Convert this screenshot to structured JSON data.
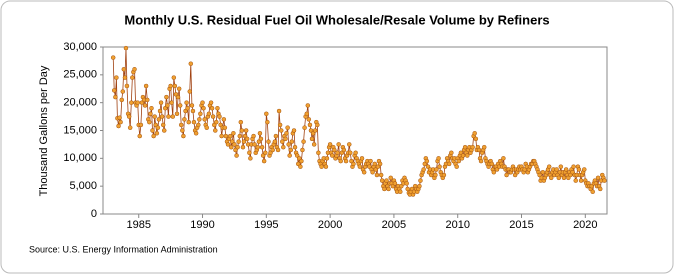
{
  "chart_data": {
    "type": "line",
    "title": "Monthly U.S. Residual Fuel Oil Wholesale/Resale Volume by Refiners",
    "y_label": "Thousand Gallons per Day",
    "source": "Source: U.S. Energy Information Administration",
    "color": "#f0a030",
    "xlim": [
      1982.2,
      2021.7
    ],
    "xticks": [
      1985,
      1990,
      1995,
      2000,
      2005,
      2010,
      2015,
      2020
    ],
    "ylim": [
      0,
      30000
    ],
    "yticks": [
      0,
      {
        "value": 5000,
        "label": "5,000"
      },
      {
        "value": 10000,
        "label": "10,000"
      },
      {
        "value": 15000,
        "label": "15,000"
      },
      {
        "value": 20000,
        "label": "20,000"
      },
      {
        "value": 25000,
        "label": "25,000"
      },
      {
        "value": 30000,
        "label": "30,000"
      }
    ],
    "x": [
      1983.0,
      1983.08,
      1983.17,
      1983.25,
      1983.33,
      1983.42,
      1983.5,
      1983.58,
      1983.67,
      1983.75,
      1983.83,
      1983.92,
      1984.0,
      1984.08,
      1984.17,
      1984.25,
      1984.33,
      1984.42,
      1984.5,
      1984.58,
      1984.67,
      1984.75,
      1984.83,
      1984.92,
      1985.0,
      1985.08,
      1985.17,
      1985.25,
      1985.33,
      1985.42,
      1985.5,
      1985.58,
      1985.67,
      1985.75,
      1985.83,
      1985.92,
      1986.0,
      1986.08,
      1986.17,
      1986.25,
      1986.33,
      1986.42,
      1986.5,
      1986.58,
      1986.67,
      1986.75,
      1986.83,
      1986.92,
      1987.0,
      1987.08,
      1987.17,
      1987.25,
      1987.33,
      1987.42,
      1987.5,
      1987.58,
      1987.67,
      1987.75,
      1987.83,
      1987.92,
      1988.0,
      1988.08,
      1988.17,
      1988.25,
      1988.33,
      1988.42,
      1988.5,
      1988.58,
      1988.67,
      1988.75,
      1988.83,
      1988.92,
      1989.0,
      1989.08,
      1989.17,
      1989.25,
      1989.33,
      1989.42,
      1989.5,
      1989.58,
      1989.67,
      1989.75,
      1989.83,
      1989.92,
      1990.0,
      1990.08,
      1990.17,
      1990.25,
      1990.33,
      1990.42,
      1990.5,
      1990.58,
      1990.67,
      1990.75,
      1990.83,
      1990.92,
      1991.0,
      1991.08,
      1991.17,
      1991.25,
      1991.33,
      1991.42,
      1991.5,
      1991.58,
      1991.67,
      1991.75,
      1991.83,
      1991.92,
      1992.0,
      1992.08,
      1992.17,
      1992.25,
      1992.33,
      1992.42,
      1992.5,
      1992.58,
      1992.67,
      1992.75,
      1992.83,
      1992.92,
      1993.0,
      1993.08,
      1993.17,
      1993.25,
      1993.33,
      1993.42,
      1993.5,
      1993.58,
      1993.67,
      1993.75,
      1993.83,
      1993.92,
      1994.0,
      1994.08,
      1994.17,
      1994.25,
      1994.33,
      1994.42,
      1994.5,
      1994.58,
      1994.67,
      1994.75,
      1994.83,
      1994.92,
      1995.0,
      1995.08,
      1995.17,
      1995.25,
      1995.33,
      1995.42,
      1995.5,
      1995.58,
      1995.67,
      1995.75,
      1995.83,
      1995.92,
      1996.0,
      1996.08,
      1996.17,
      1996.25,
      1996.33,
      1996.42,
      1996.5,
      1996.58,
      1996.67,
      1996.75,
      1996.83,
      1996.92,
      1997.0,
      1997.08,
      1997.17,
      1997.25,
      1997.33,
      1997.42,
      1997.5,
      1997.58,
      1997.67,
      1997.75,
      1997.83,
      1997.92,
      1998.0,
      1998.08,
      1998.17,
      1998.25,
      1998.33,
      1998.42,
      1998.5,
      1998.58,
      1998.67,
      1998.75,
      1998.83,
      1998.92,
      1999.0,
      1999.08,
      1999.17,
      1999.25,
      1999.33,
      1999.42,
      1999.5,
      1999.58,
      1999.67,
      1999.75,
      1999.83,
      1999.92,
      2000.0,
      2000.08,
      2000.17,
      2000.25,
      2000.33,
      2000.42,
      2000.5,
      2000.58,
      2000.67,
      2000.75,
      2000.83,
      2000.92,
      2001.0,
      2001.08,
      2001.17,
      2001.25,
      2001.33,
      2001.42,
      2001.5,
      2001.58,
      2001.67,
      2001.75,
      2001.83,
      2001.92,
      2002.0,
      2002.08,
      2002.17,
      2002.25,
      2002.33,
      2002.42,
      2002.5,
      2002.58,
      2002.67,
      2002.75,
      2002.83,
      2002.92,
      2003.0,
      2003.08,
      2003.17,
      2003.25,
      2003.33,
      2003.42,
      2003.5,
      2003.58,
      2003.67,
      2003.75,
      2003.83,
      2003.92,
      2004.0,
      2004.08,
      2004.17,
      2004.25,
      2004.33,
      2004.42,
      2004.5,
      2004.58,
      2004.67,
      2004.75,
      2004.83,
      2004.92,
      2005.0,
      2005.08,
      2005.17,
      2005.25,
      2005.33,
      2005.42,
      2005.5,
      2005.58,
      2005.67,
      2005.75,
      2005.83,
      2005.92,
      2006.0,
      2006.08,
      2006.17,
      2006.25,
      2006.33,
      2006.42,
      2006.5,
      2006.58,
      2006.67,
      2006.75,
      2006.83,
      2006.92,
      2007.0,
      2007.08,
      2007.17,
      2007.25,
      2007.33,
      2007.42,
      2007.5,
      2007.58,
      2007.67,
      2007.75,
      2007.83,
      2007.92,
      2008.0,
      2008.08,
      2008.17,
      2008.25,
      2008.33,
      2008.42,
      2008.5,
      2008.58,
      2008.67,
      2008.75,
      2008.83,
      2008.92,
      2009.0,
      2009.08,
      2009.17,
      2009.25,
      2009.33,
      2009.42,
      2009.5,
      2009.58,
      2009.67,
      2009.75,
      2009.83,
      2009.92,
      2010.0,
      2010.08,
      2010.17,
      2010.25,
      2010.33,
      2010.42,
      2010.5,
      2010.58,
      2010.67,
      2010.75,
      2010.83,
      2010.92,
      2011.0,
      2011.08,
      2011.17,
      2011.25,
      2011.33,
      2011.42,
      2011.5,
      2011.58,
      2011.67,
      2011.75,
      2011.83,
      2011.92,
      2012.0,
      2012.08,
      2012.17,
      2012.25,
      2012.33,
      2012.42,
      2012.5,
      2012.58,
      2012.67,
      2012.75,
      2012.83,
      2012.92,
      2013.0,
      2013.08,
      2013.17,
      2013.25,
      2013.33,
      2013.42,
      2013.5,
      2013.58,
      2013.67,
      2013.75,
      2013.83,
      2013.92,
      2014.0,
      2014.08,
      2014.17,
      2014.25,
      2014.33,
      2014.42,
      2014.5,
      2014.58,
      2014.67,
      2014.75,
      2014.83,
      2014.92,
      2015.0,
      2015.08,
      2015.17,
      2015.25,
      2015.33,
      2015.42,
      2015.5,
      2015.58,
      2015.67,
      2015.75,
      2015.83,
      2015.92,
      2016.0,
      2016.08,
      2016.17,
      2016.25,
      2016.33,
      2016.42,
      2016.5,
      2016.58,
      2016.67,
      2016.75,
      2016.83,
      2016.92,
      2017.0,
      2017.08,
      2017.17,
      2017.25,
      2017.33,
      2017.42,
      2017.5,
      2017.58,
      2017.67,
      2017.75,
      2017.83,
      2017.92,
      2018.0,
      2018.08,
      2018.17,
      2018.25,
      2018.33,
      2018.42,
      2018.5,
      2018.58,
      2018.67,
      2018.75,
      2018.83,
      2018.92,
      2019.0,
      2019.08,
      2019.17,
      2019.25,
      2019.33,
      2019.42,
      2019.5,
      2019.58,
      2019.67,
      2019.75,
      2019.83,
      2019.92,
      2020.0,
      2020.08,
      2020.17,
      2020.25,
      2020.33,
      2020.42,
      2020.5,
      2020.58,
      2020.67,
      2020.75,
      2020.83,
      2020.92,
      2021.0,
      2021.08,
      2021.17,
      2021.25,
      2021.33,
      2021.42,
      2021.5
    ],
    "values": [
      28100,
      22200,
      21000,
      24500,
      17200,
      15800,
      17300,
      16500,
      20500,
      22000,
      26000,
      24500,
      29800,
      23000,
      18000,
      17500,
      15500,
      20000,
      24500,
      25500,
      26000,
      20000,
      19500,
      20000,
      16000,
      14000,
      16000,
      20000,
      21000,
      20500,
      19500,
      23000,
      20500,
      17000,
      16500,
      18000,
      19000,
      15000,
      14000,
      17500,
      16000,
      14500,
      15500,
      17000,
      18500,
      20000,
      17500,
      16000,
      15000,
      19000,
      21000,
      19500,
      17500,
      22500,
      23000,
      20000,
      17500,
      24500,
      23000,
      21500,
      18000,
      21000,
      22500,
      19500,
      16000,
      15000,
      14000,
      17000,
      18500,
      20000,
      19000,
      16500,
      22000,
      27000,
      19500,
      18500,
      16500,
      15000,
      14500,
      15500,
      16000,
      17000,
      18000,
      19500,
      20000,
      19000,
      17000,
      16000,
      15500,
      17500,
      18000,
      19500,
      20000,
      19000,
      17500,
      16000,
      15000,
      16500,
      19000,
      18000,
      17500,
      16000,
      14000,
      15500,
      17000,
      15500,
      14000,
      13000,
      12500,
      13500,
      14000,
      12000,
      13000,
      14500,
      12500,
      11500,
      10500,
      12000,
      13000,
      14000,
      16500,
      15000,
      12000,
      13000,
      14000,
      15000,
      13500,
      12500,
      11000,
      10000,
      12500,
      13500,
      14000,
      12500,
      11000,
      11500,
      12000,
      13000,
      14500,
      13500,
      12000,
      10500,
      9500,
      11000,
      18000,
      16500,
      13000,
      10500,
      11000,
      12000,
      11500,
      12500,
      13000,
      14000,
      12000,
      11500,
      18500,
      16000,
      15000,
      13000,
      12000,
      14000,
      13500,
      14500,
      15500,
      12500,
      10500,
      11500,
      13000,
      14500,
      15000,
      12000,
      11000,
      10500,
      9000,
      10000,
      8500,
      9500,
      11500,
      13000,
      15500,
      17500,
      18000,
      19500,
      17000,
      16000,
      15000,
      13500,
      14500,
      12500,
      15000,
      16500,
      16000,
      11000,
      9500,
      9000,
      8500,
      9500,
      10000,
      9000,
      8500,
      10000,
      11000,
      12000,
      12500,
      11000,
      10500,
      12000,
      11500,
      10000,
      10500,
      11000,
      12500,
      10000,
      9500,
      11000,
      12000,
      11500,
      10000,
      9500,
      10500,
      11000,
      12500,
      11000,
      9500,
      8500,
      9000,
      10500,
      11000,
      10000,
      9500,
      9000,
      8500,
      9500,
      10000,
      8000,
      7500,
      8500,
      9000,
      9500,
      9000,
      8500,
      9500,
      8000,
      7500,
      8500,
      9000,
      8000,
      7000,
      8500,
      9500,
      9000,
      7000,
      6000,
      5000,
      4500,
      5500,
      6000,
      5000,
      4500,
      5500,
      6500,
      5500,
      5000,
      6000,
      5500,
      4500,
      4000,
      5000,
      4500,
      4000,
      5000,
      6000,
      5500,
      6500,
      6000,
      5500,
      4500,
      3800,
      3500,
      4000,
      4500,
      3500,
      4000,
      5000,
      4500,
      4000,
      4500,
      5000,
      6000,
      7000,
      7500,
      8000,
      9000,
      10000,
      9500,
      8500,
      7500,
      8000,
      7000,
      7500,
      8000,
      6500,
      7000,
      8000,
      9500,
      10000,
      8500,
      7500,
      7000,
      6500,
      7000,
      8500,
      9000,
      10000,
      9500,
      9000,
      10500,
      11000,
      10000,
      9500,
      10000,
      9000,
      8500,
      10000,
      9500,
      10500,
      11000,
      10000,
      10500,
      11500,
      12000,
      11000,
      10500,
      11500,
      12000,
      11000,
      11500,
      12000,
      14000,
      14500,
      13500,
      11500,
      12000,
      11500,
      10000,
      9500,
      11000,
      11500,
      12000,
      10000,
      9500,
      9000,
      8500,
      9000,
      9500,
      9000,
      8000,
      7500,
      8500,
      8500,
      8000,
      9000,
      8500,
      9500,
      9000,
      8500,
      10000,
      8500,
      8000,
      7000,
      8000,
      8000,
      7500,
      7500,
      8000,
      8500,
      8000,
      7000,
      8000,
      7500,
      8000,
      8500,
      8000,
      8500,
      8000,
      7500,
      8000,
      9000,
      8500,
      7500,
      8000,
      8500,
      9000,
      9000,
      9500,
      9500,
      9000,
      8500,
      8000,
      7500,
      7000,
      6000,
      6500,
      7500,
      6000,
      6500,
      7000,
      7500,
      8000,
      8500,
      7000,
      6500,
      7500,
      8000,
      7000,
      7500,
      8000,
      7000,
      6500,
      7500,
      8500,
      7000,
      7500,
      6500,
      7500,
      8000,
      7000,
      6500,
      7500,
      7000,
      8000,
      7500,
      8500,
      7000,
      6000,
      7000,
      8500,
      8000,
      7000,
      6000,
      7000,
      7500,
      8000,
      6000,
      5500,
      5000,
      5500,
      5000,
      4500,
      5000,
      4000,
      5500,
      6000,
      5500,
      5000,
      6500,
      5000,
      4500,
      6000,
      7000,
      6500,
      6000
    ]
  }
}
